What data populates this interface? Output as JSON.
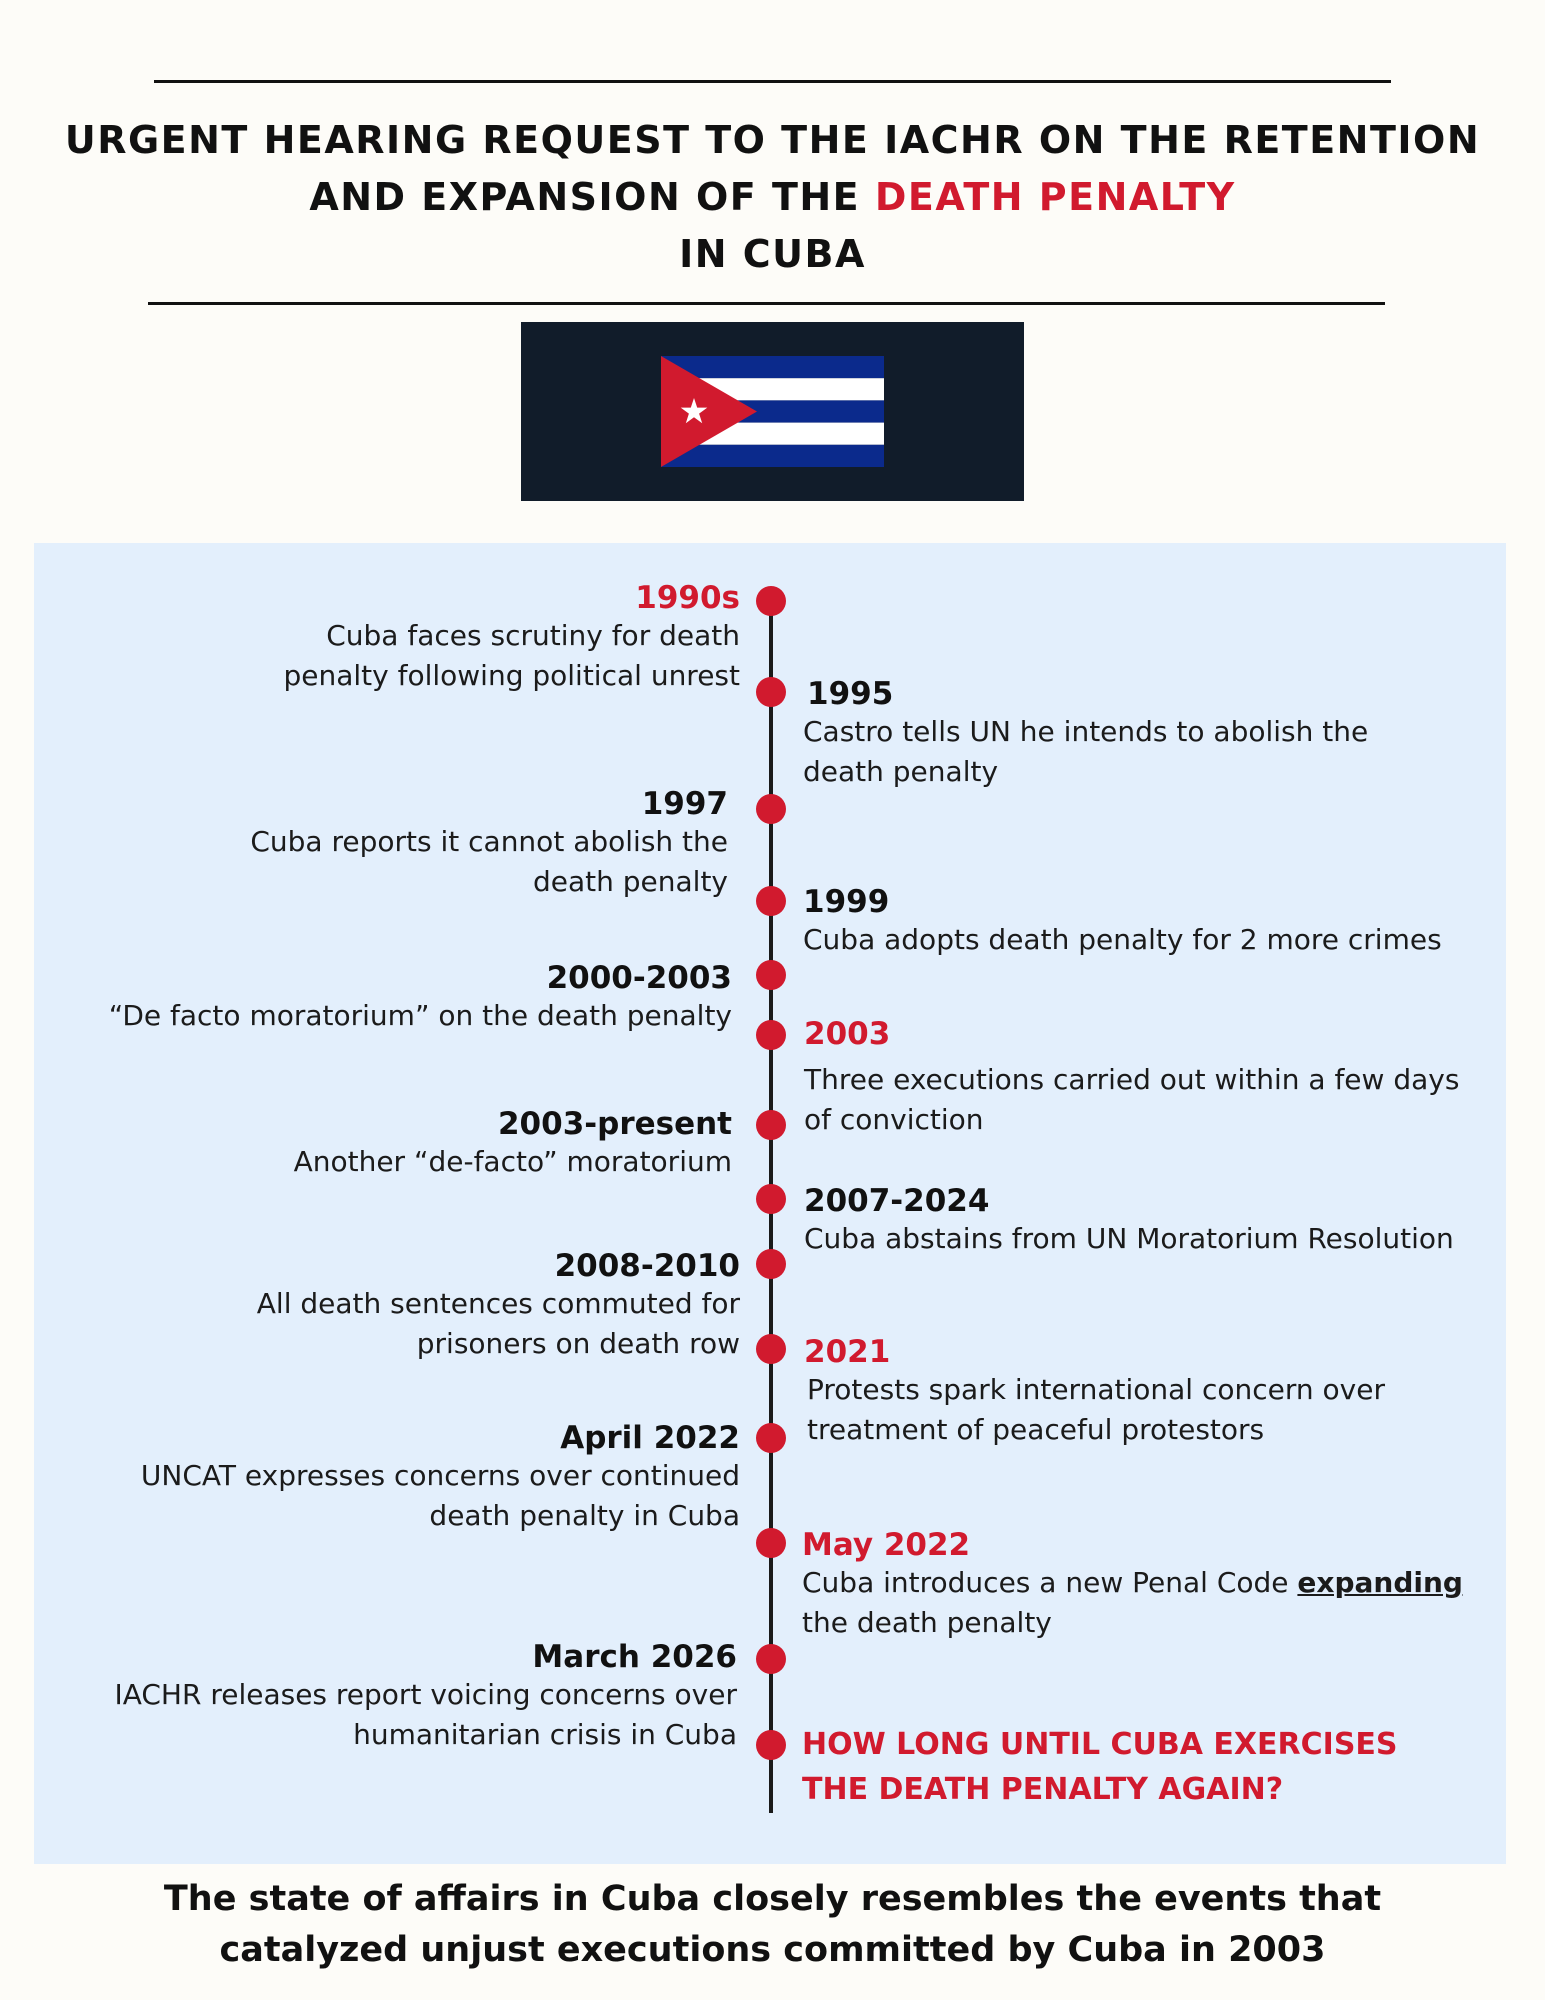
{
  "header": {
    "title_line1": "URGENT HEARING REQUEST TO THE IACHR ON THE RETENTION",
    "title_line2_prefix": "AND EXPANSION OF THE ",
    "title_line2_accent": "DEATH PENALTY",
    "title_line3": "IN CUBA"
  },
  "flag": {
    "name": "cuba-flag",
    "colors": {
      "blue": "#0b2a8c",
      "red": "#d11a2e",
      "white": "#ffffff",
      "background": "#111c2a"
    }
  },
  "timeline": {
    "left": [
      {
        "year": "1990s",
        "red": true,
        "desc": [
          "Cuba faces  scrutiny for death",
          "penalty following political unrest"
        ]
      },
      {
        "year": "1997",
        "red": false,
        "desc": [
          "Cuba reports it cannot abolish the",
          "death penalty"
        ]
      },
      {
        "year": "2000-2003",
        "red": false,
        "desc": [
          "“De facto moratorium” on the death penalty"
        ]
      },
      {
        "year": "2003-present",
        "red": false,
        "desc": [
          "Another “de-facto” moratorium"
        ]
      },
      {
        "year": "2008-2010",
        "red": false,
        "desc": [
          "All death sentences commuted for",
          "prisoners on death row"
        ]
      },
      {
        "year": "April 2022",
        "red": false,
        "desc": [
          "UNCAT expresses concerns over continued",
          "death penalty in Cuba"
        ]
      },
      {
        "year": "March 2026",
        "red": false,
        "desc": [
          "IACHR releases report voicing concerns over",
          "humanitarian crisis in Cuba"
        ]
      }
    ],
    "right": [
      {
        "year": "1995",
        "red": false,
        "desc": [
          "Castro tells UN he intends to abolish the",
          "death penalty"
        ]
      },
      {
        "year": "1999",
        "red": false,
        "desc": [
          "Cuba adopts death penalty for 2 more crimes"
        ]
      },
      {
        "year": "2003",
        "red": true,
        "desc": [
          "Three executions carried out within a few days",
          "of conviction"
        ]
      },
      {
        "year": "2007-2024",
        "red": false,
        "desc": [
          "Cuba abstains from UN Moratorium Resolution"
        ]
      },
      {
        "year": "2021",
        "red": true,
        "desc": [
          "Protests spark international concern over",
          "treatment of peaceful protestors"
        ]
      },
      {
        "year": "May 2022",
        "red": true,
        "desc_prefix": "Cuba introduces a new Penal Code ",
        "desc_emphasis": "expanding",
        "desc": [
          "the death penalty"
        ]
      }
    ],
    "question": [
      "HOW LONG UNTIL CUBA EXERCISES",
      "THE DEATH PENALTY AGAIN?"
    ]
  },
  "footer": {
    "line1": "The state of affairs in Cuba closely resembles the events that",
    "line2": "catalyzed unjust executions committed by Cuba in 2003"
  }
}
